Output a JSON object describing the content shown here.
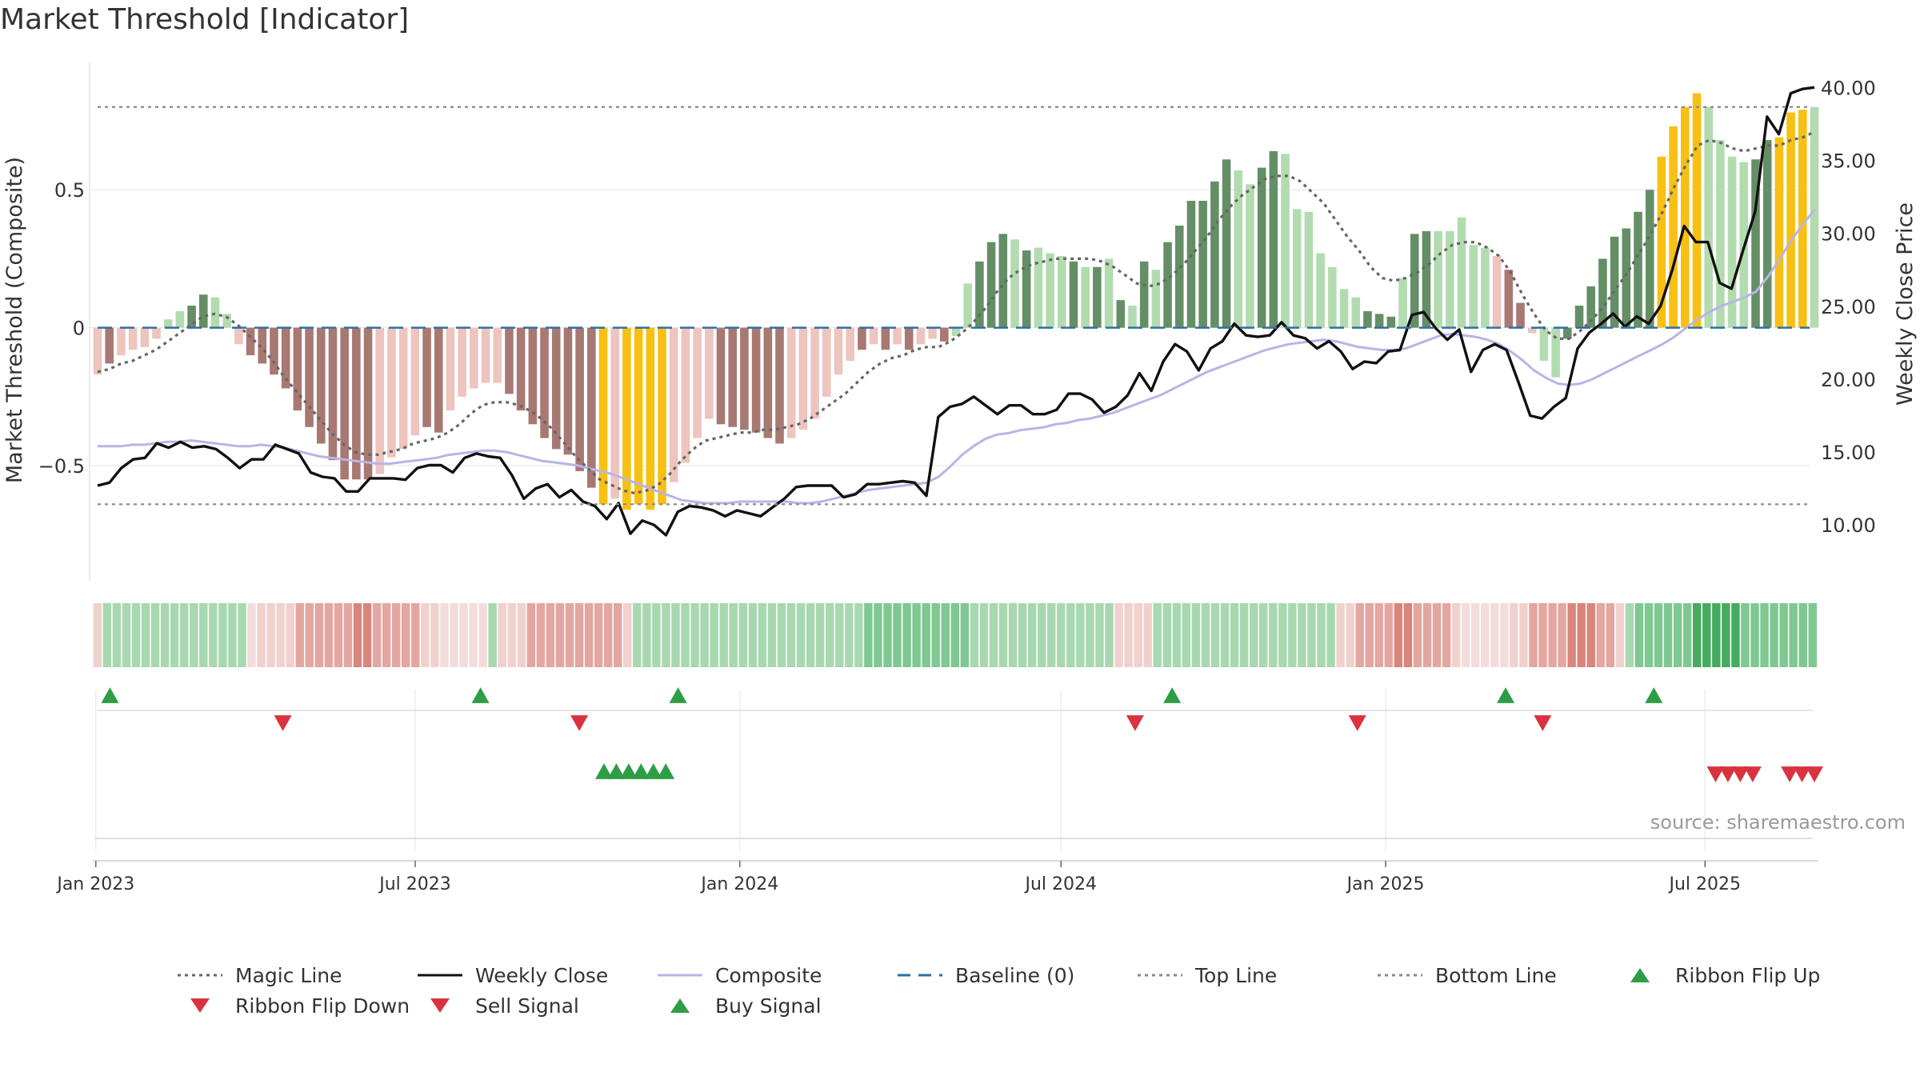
{
  "title": "Market Threshold [Indicator]",
  "source": "source: sharemaestro.com",
  "colors": {
    "pos_dark": "#648f66",
    "pos_light": "#b3dbb0",
    "neg_dark": "#a87873",
    "neg_light": "#eec4be",
    "signal": "#f8c012",
    "weekly_close": "#111111",
    "composite": "#b9b4e6",
    "magic": "#666666",
    "baseline": "#2f6fa3",
    "threshold": "#888888",
    "buy": "#2e9e46",
    "sell": "#d9333f"
  },
  "legend": [
    {
      "key": "magic",
      "label": "Magic Line",
      "icon": "dotted-line"
    },
    {
      "key": "weekly_close",
      "label": "Weekly Close",
      "icon": "solid-line"
    },
    {
      "key": "composite",
      "label": "Composite",
      "icon": "solid-line"
    },
    {
      "key": "baseline",
      "label": "Baseline (0)",
      "icon": "dashed-line"
    },
    {
      "key": "threshold",
      "label": "Top Line",
      "icon": "dotted-line"
    },
    {
      "key": "threshold",
      "label": "Bottom Line",
      "icon": "dotted-line"
    },
    {
      "key": "buy",
      "label": "Ribbon Flip Up",
      "icon": "triangle-up"
    },
    {
      "key": "sell",
      "label": "Ribbon Flip Down",
      "icon": "triangle-down"
    },
    {
      "key": "sell",
      "label": "Sell Signal",
      "icon": "triangle-down"
    },
    {
      "key": "buy",
      "label": "Buy Signal",
      "icon": "triangle-up"
    }
  ],
  "chart_data": {
    "type": "bar",
    "x_axis": {
      "start": "2023-01-02",
      "end": "2025-09-01",
      "ticks": [
        "Jan 2023",
        "Jul 2023",
        "Jan 2024",
        "Jul 2024",
        "Jan 2025",
        "Jul 2025"
      ]
    },
    "left_axis": {
      "label": "Market Threshold (Composite)",
      "ylim": [
        -0.9,
        0.95
      ],
      "ticks": [
        0.5,
        0,
        -0.5
      ],
      "tick_labels": [
        "0.5",
        "0",
        "−0.5"
      ]
    },
    "right_axis": {
      "label": "Weekly Close Price",
      "ylim": [
        6.5,
        41.5
      ],
      "ticks": [
        10,
        15,
        20,
        25,
        30,
        35,
        40
      ],
      "tick_labels": [
        "10.00",
        "15.00",
        "20.00",
        "25.00",
        "30.00",
        "35.00",
        "40.00"
      ]
    },
    "top_line": 0.8,
    "bottom_line": -0.64,
    "baseline": 0,
    "bars": [
      -0.17,
      -0.13,
      -0.1,
      -0.08,
      -0.07,
      -0.04,
      0.03,
      0.06,
      0.08,
      0.12,
      0.11,
      0.05,
      -0.06,
      -0.1,
      -0.13,
      -0.17,
      -0.22,
      -0.3,
      -0.36,
      -0.42,
      -0.48,
      -0.55,
      -0.55,
      -0.55,
      -0.53,
      -0.47,
      -0.44,
      -0.39,
      -0.36,
      -0.38,
      -0.3,
      -0.25,
      -0.22,
      -0.2,
      -0.2,
      -0.24,
      -0.3,
      -0.35,
      -0.4,
      -0.44,
      -0.46,
      -0.52,
      -0.58,
      -0.64,
      -0.62,
      -0.66,
      -0.64,
      -0.66,
      -0.64,
      -0.56,
      -0.49,
      -0.4,
      -0.33,
      -0.35,
      -0.36,
      -0.37,
      -0.38,
      -0.4,
      -0.42,
      -0.4,
      -0.37,
      -0.33,
      -0.25,
      -0.17,
      -0.12,
      -0.08,
      -0.06,
      -0.08,
      -0.06,
      -0.08,
      -0.06,
      -0.04,
      -0.05,
      -0.03,
      0.16,
      0.24,
      0.31,
      0.34,
      0.32,
      0.28,
      0.29,
      0.27,
      0.26,
      0.24,
      0.22,
      0.22,
      0.25,
      0.1,
      0.08,
      0.24,
      0.21,
      0.31,
      0.37,
      0.46,
      0.46,
      0.53,
      0.61,
      0.57,
      0.52,
      0.58,
      0.64,
      0.63,
      0.43,
      0.42,
      0.27,
      0.22,
      0.14,
      0.11,
      0.06,
      0.05,
      0.04,
      0.18,
      0.34,
      0.35,
      0.35,
      0.35,
      0.4,
      0.3,
      0.29,
      0.26,
      0.21,
      0.09,
      -0.02,
      -0.12,
      -0.18,
      -0.04,
      0.08,
      0.15,
      0.25,
      0.33,
      0.36,
      0.42,
      0.5,
      0.62,
      0.73,
      0.8,
      0.85,
      0.8,
      0.68,
      0.62,
      0.6,
      0.61,
      0.68,
      0.69,
      0.78,
      0.79,
      0.8
    ],
    "bar_styles": [
      "nl",
      "nd",
      "nl",
      "nl",
      "nl",
      "nl",
      "pl",
      "pl",
      "pd",
      "pd",
      "pl",
      "pl",
      "nl",
      "nd",
      "nd",
      "nd",
      "nd",
      "nd",
      "nd",
      "nd",
      "nd",
      "nd",
      "nd",
      "nd",
      "nl",
      "nl",
      "nl",
      "nl",
      "nd",
      "nd",
      "nl",
      "nl",
      "nl",
      "nl",
      "nl",
      "nd",
      "nd",
      "nd",
      "nd",
      "nd",
      "nd",
      "nd",
      "nd",
      "s",
      "nl",
      "s",
      "s",
      "s",
      "s",
      "nl",
      "nl",
      "nl",
      "nl",
      "nd",
      "nd",
      "nd",
      "nd",
      "nd",
      "nd",
      "nl",
      "nl",
      "nl",
      "nl",
      "nl",
      "nl",
      "nd",
      "nl",
      "nd",
      "nl",
      "nd",
      "nl",
      "nl",
      "nd",
      "pl",
      "pl",
      "pd",
      "pd",
      "pd",
      "pl",
      "pd",
      "pl",
      "pl",
      "pl",
      "pd",
      "pl",
      "pd",
      "pl",
      "pd",
      "pl",
      "pd",
      "pl",
      "pd",
      "pd",
      "pd",
      "pd",
      "pd",
      "pd",
      "pl",
      "pl",
      "pd",
      "pd",
      "pl",
      "pl",
      "pl",
      "pl",
      "pl",
      "pl",
      "pl",
      "pd",
      "pd",
      "pd",
      "pl",
      "pd",
      "pd",
      "pl",
      "pl",
      "pl",
      "pl",
      "pl",
      "nl",
      "nd",
      "nd",
      "nl",
      "pl",
      "pl",
      "pd",
      "pd",
      "pd",
      "pd",
      "pd",
      "pd",
      "pd",
      "pd",
      "s",
      "s",
      "s",
      "s",
      "pl",
      "pl",
      "pl",
      "pl",
      "pd",
      "pd",
      "s",
      "s",
      "s"
    ],
    "weekly_close": [
      12.7,
      12.9,
      13.9,
      14.5,
      14.6,
      15.6,
      15.3,
      15.7,
      15.3,
      15.4,
      15.2,
      14.6,
      13.9,
      14.5,
      14.5,
      15.5,
      15.2,
      14.9,
      13.6,
      13.3,
      13.2,
      12.3,
      12.3,
      13.2,
      13.2,
      13.2,
      13.1,
      13.9,
      14.1,
      14.1,
      13.6,
      14.6,
      14.9,
      14.7,
      14.6,
      13.4,
      11.8,
      12.5,
      12.8,
      11.9,
      12.4,
      11.6,
      11.3,
      10.4,
      11.5,
      9.4,
      10.3,
      10.0,
      9.3,
      10.9,
      11.3,
      11.2,
      11.0,
      10.6,
      11.0,
      10.8,
      10.6,
      11.2,
      11.8,
      12.6,
      12.7,
      12.7,
      12.7,
      11.9,
      12.1,
      12.8,
      12.8,
      12.9,
      13.0,
      12.9,
      12.0,
      17.4,
      18.1,
      18.3,
      18.8,
      18.2,
      17.6,
      18.2,
      18.2,
      17.6,
      17.6,
      17.9,
      19.0,
      19.0,
      18.6,
      17.7,
      18.1,
      18.9,
      20.4,
      19.2,
      21.2,
      22.4,
      21.9,
      20.6,
      22.1,
      22.6,
      23.8,
      23.0,
      22.9,
      23.0,
      23.9,
      23.0,
      22.8,
      22.1,
      22.6,
      21.9,
      20.7,
      21.2,
      21.1,
      21.9,
      22.0,
      24.4,
      24.6,
      23.5,
      22.7,
      23.4,
      20.5,
      22.0,
      22.4,
      22.0,
      19.8,
      17.5,
      17.3,
      18.1,
      18.7,
      22.1,
      23.2,
      23.8,
      24.5,
      23.6,
      24.3,
      23.8,
      25.0,
      27.5,
      30.5,
      29.4,
      29.4,
      26.6,
      26.2,
      28.9,
      31.5,
      38.0,
      36.8,
      39.6,
      39.9,
      40.0
    ],
    "composite": [
      15.4,
      15.4,
      15.4,
      15.5,
      15.5,
      15.6,
      15.7,
      15.7,
      15.8,
      15.7,
      15.6,
      15.5,
      15.4,
      15.4,
      15.5,
      15.4,
      15.3,
      15.1,
      14.9,
      14.7,
      14.6,
      14.5,
      14.4,
      14.3,
      14.2,
      14.2,
      14.3,
      14.4,
      14.5,
      14.6,
      14.8,
      14.9,
      15.0,
      15.1,
      15.1,
      15.0,
      14.8,
      14.6,
      14.4,
      14.3,
      14.2,
      14.1,
      13.9,
      13.7,
      13.5,
      13.2,
      12.9,
      12.6,
      12.3,
      12.0,
      11.7,
      11.6,
      11.5,
      11.5,
      11.5,
      11.6,
      11.6,
      11.6,
      11.6,
      11.6,
      11.5,
      11.5,
      11.6,
      11.8,
      12.0,
      12.2,
      12.4,
      12.5,
      12.6,
      12.7,
      12.8,
      12.9,
      13.3,
      14.0,
      14.8,
      15.4,
      15.9,
      16.2,
      16.3,
      16.5,
      16.6,
      16.7,
      16.9,
      17.0,
      17.2,
      17.3,
      17.5,
      17.7,
      18.0,
      18.3,
      18.6,
      18.9,
      19.3,
      19.7,
      20.1,
      20.5,
      20.8,
      21.1,
      21.4,
      21.7,
      22.0,
      22.2,
      22.4,
      22.5,
      22.6,
      22.7,
      22.6,
      22.4,
      22.2,
      22.1,
      22.0,
      22.0,
      22.1,
      22.4,
      22.7,
      23.0,
      23.1,
      23.0,
      22.9,
      22.7,
      22.4,
      21.9,
      21.3,
      20.6,
      20.1,
      19.7,
      19.6,
      19.7,
      20.0,
      20.4,
      20.8,
      21.2,
      21.6,
      22.0,
      22.4,
      22.9,
      23.5,
      24.1,
      24.6,
      25.0,
      25.3,
      25.6,
      26.0,
      27.0,
      28.2,
      29.5,
      30.6,
      31.6
    ],
    "magic": [
      -0.16,
      -0.15,
      -0.13,
      -0.12,
      -0.1,
      -0.08,
      -0.05,
      -0.02,
      0.01,
      0.04,
      0.05,
      0.04,
      0.01,
      -0.03,
      -0.07,
      -0.12,
      -0.18,
      -0.23,
      -0.28,
      -0.33,
      -0.38,
      -0.42,
      -0.45,
      -0.46,
      -0.46,
      -0.45,
      -0.44,
      -0.42,
      -0.41,
      -0.4,
      -0.38,
      -0.35,
      -0.31,
      -0.28,
      -0.27,
      -0.27,
      -0.28,
      -0.3,
      -0.33,
      -0.37,
      -0.42,
      -0.47,
      -0.51,
      -0.55,
      -0.57,
      -0.59,
      -0.6,
      -0.59,
      -0.57,
      -0.53,
      -0.48,
      -0.44,
      -0.41,
      -0.4,
      -0.39,
      -0.38,
      -0.38,
      -0.37,
      -0.37,
      -0.36,
      -0.35,
      -0.33,
      -0.3,
      -0.27,
      -0.24,
      -0.2,
      -0.16,
      -0.13,
      -0.11,
      -0.1,
      -0.08,
      -0.07,
      -0.07,
      -0.05,
      -0.02,
      0.02,
      0.07,
      0.13,
      0.18,
      0.21,
      0.23,
      0.24,
      0.25,
      0.25,
      0.25,
      0.25,
      0.24,
      0.22,
      0.19,
      0.16,
      0.15,
      0.16,
      0.19,
      0.23,
      0.28,
      0.33,
      0.39,
      0.44,
      0.48,
      0.51,
      0.54,
      0.55,
      0.55,
      0.53,
      0.49,
      0.45,
      0.39,
      0.33,
      0.28,
      0.22,
      0.18,
      0.17,
      0.18,
      0.2,
      0.23,
      0.27,
      0.3,
      0.31,
      0.31,
      0.29,
      0.26,
      0.2,
      0.12,
      0.05,
      -0.01,
      -0.04,
      -0.04,
      -0.01,
      0.03,
      0.08,
      0.14,
      0.2,
      0.27,
      0.34,
      0.42,
      0.51,
      0.59,
      0.66,
      0.68,
      0.67,
      0.65,
      0.64,
      0.65,
      0.66,
      0.66,
      0.68,
      0.69,
      0.71
    ],
    "ribbon_levels": [
      -1,
      1,
      1,
      1,
      1,
      1,
      1,
      1,
      1,
      1,
      1,
      1,
      1,
      1,
      1,
      1,
      0,
      -1,
      -1,
      -1,
      -1,
      -2,
      -2,
      -2,
      -2,
      -2,
      -2,
      -3,
      -3,
      -2,
      -2,
      -2,
      -2,
      -2,
      -1,
      -1,
      0,
      0,
      0,
      0,
      0,
      1,
      -1,
      -1,
      -1,
      -2,
      -2,
      -2,
      -2,
      -2,
      -2,
      -2,
      -2,
      -2,
      -2,
      -1,
      1,
      1,
      1,
      1,
      1,
      1,
      1,
      1,
      1,
      1,
      1,
      1,
      1,
      1,
      1,
      1,
      1,
      1,
      1,
      1,
      1,
      1,
      1,
      1,
      2,
      2,
      2,
      2,
      2,
      2,
      2,
      2,
      2,
      2,
      2,
      1,
      1,
      1,
      1,
      1,
      1,
      1,
      1,
      1,
      1,
      1,
      1,
      1,
      1,
      1,
      -1,
      -1,
      -1,
      -1,
      1,
      1,
      1,
      1,
      1,
      1,
      1,
      1,
      1,
      1,
      1,
      1,
      1,
      1,
      1,
      1,
      1,
      1,
      1,
      -1,
      -1,
      -2,
      -2,
      -2,
      -2,
      -3,
      -3,
      -2,
      -2,
      -2,
      -2,
      -1,
      0,
      0,
      0,
      0,
      0,
      -1,
      -1,
      -2,
      -2,
      -2,
      -2,
      -3,
      -3,
      -3,
      -2,
      -2,
      -1,
      1,
      2,
      2,
      2,
      2,
      2,
      2,
      3,
      3,
      3,
      3,
      3,
      2,
      2,
      2,
      2,
      2,
      2,
      2,
      2
    ],
    "ribbon_flip_up": [
      "2023-01-09",
      "2023-08-07",
      "2023-11-27",
      "2024-09-02",
      "2025-03-10",
      "2025-06-02"
    ],
    "ribbon_flip_down": [
      "2023-04-17",
      "2023-10-02",
      "2024-08-12",
      "2024-12-16",
      "2025-03-31"
    ],
    "buy_signals": [
      "2023-10-16",
      "2023-10-23",
      "2023-10-30",
      "2023-11-06",
      "2023-11-13",
      "2023-11-20"
    ],
    "sell_signals": [
      "2025-07-07",
      "2025-07-14",
      "2025-07-21",
      "2025-07-28",
      "2025-08-18",
      "2025-08-25",
      "2025-09-01"
    ]
  }
}
